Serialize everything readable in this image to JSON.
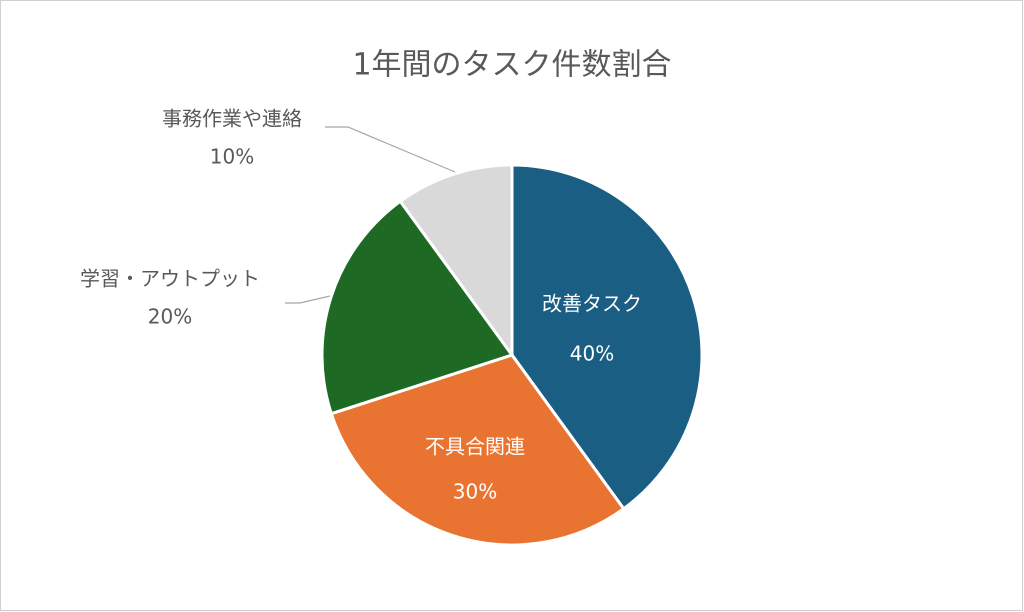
{
  "chart_data": {
    "type": "pie",
    "title": "1年間のタスク件数割合",
    "categories": [
      "改善タスク",
      "不具合関連",
      "学習・アウトプット",
      "事務作業や連絡"
    ],
    "values": [
      40,
      30,
      20,
      10
    ],
    "value_labels": [
      "40%",
      "30%",
      "20%",
      "10%"
    ],
    "colors": [
      "#1a5e84",
      "#e97432",
      "#1e6a25",
      "#d9d9d9"
    ]
  }
}
